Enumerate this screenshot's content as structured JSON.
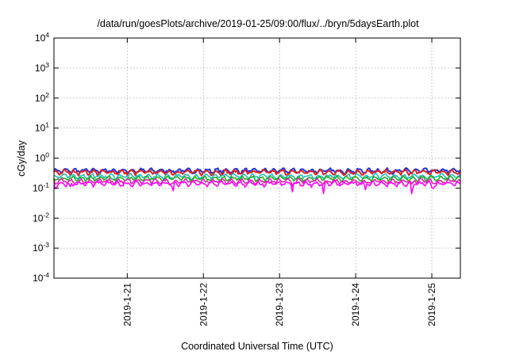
{
  "chart_data": {
    "type": "line",
    "title": "/data/run/goesPlots/archive/2019-01-25/09:00/flux/../bryn/5daysEarth.plot",
    "xlabel": "Coordinated Universal Time (UTC)",
    "ylabel": "cGy/day",
    "yscale": "log",
    "ylim": [
      0.0001,
      10000
    ],
    "yticks": [
      {
        "base": "10",
        "exp": "4",
        "value": 10000
      },
      {
        "base": "10",
        "exp": "3",
        "value": 1000
      },
      {
        "base": "10",
        "exp": "2",
        "value": 100
      },
      {
        "base": "10",
        "exp": "1",
        "value": 10
      },
      {
        "base": "10",
        "exp": "0",
        "value": 1
      },
      {
        "base": "10",
        "exp": "-1",
        "value": 0.1
      },
      {
        "base": "10",
        "exp": "-2",
        "value": 0.01
      },
      {
        "base": "10",
        "exp": "-3",
        "value": 0.001
      },
      {
        "base": "10",
        "exp": "-4",
        "value": 0.0001
      }
    ],
    "xlim": [
      "2019-01-20T00:54",
      "2019-01-25T09:00"
    ],
    "xticks": [
      {
        "label": "2019-1-21",
        "value": "2019-01-21T00:00"
      },
      {
        "label": "2019-1-22",
        "value": "2019-01-22T00:00"
      },
      {
        "label": "2019-1-23",
        "value": "2019-01-23T00:00"
      },
      {
        "label": "2019-1-24",
        "value": "2019-01-24T00:00"
      },
      {
        "label": "2019-1-25",
        "value": "2019-01-25T00:00"
      }
    ],
    "grid": true,
    "legend": "none",
    "series": [
      {
        "color": "#2233dd",
        "level": 0.38,
        "dip_depth": 0.05
      },
      {
        "color": "#dd2222",
        "level": 0.34,
        "dip_depth": 0.05
      },
      {
        "color": "#22bbbb",
        "level": 0.25,
        "dip_depth": 0.1
      },
      {
        "color": "#22aa22",
        "level": 0.21,
        "dip_depth": 0.1
      },
      {
        "color": "#dd22aa",
        "level": 0.17,
        "dip_depth": 0.3
      },
      {
        "color": "#ff00ff",
        "level": 0.14,
        "dip_depth": 1.0
      }
    ],
    "dips": [
      {
        "x": "2019-01-20T01:30",
        "value": 0.08
      },
      {
        "x": "2019-01-20T06:00",
        "value": 0.11
      },
      {
        "x": "2019-01-21T14:20",
        "value": 0.06
      },
      {
        "x": "2019-01-22T18:00",
        "value": 0.11
      },
      {
        "x": "2019-01-23T04:00",
        "value": 0.07
      },
      {
        "x": "2019-01-23T13:50",
        "value": 0.06
      },
      {
        "x": "2019-01-24T03:00",
        "value": 0.075
      },
      {
        "x": "2019-01-24T17:45",
        "value": 0.045
      },
      {
        "x": "2019-01-25T00:15",
        "value": 0.08
      }
    ]
  }
}
